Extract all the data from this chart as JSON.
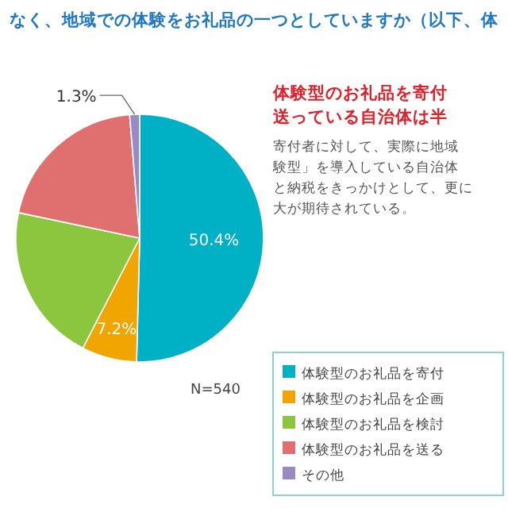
{
  "chart_data": {
    "type": "pie",
    "title": "なく、地域での体験をお礼品の一つとしていますか（以下、体",
    "categories": [
      "体験型のお礼品を寄付",
      "体験型のお礼品を企画",
      "体験型のお礼品を検討",
      "体験型のお礼品を送る",
      "その他"
    ],
    "values": [
      50.4,
      7.2,
      20.7,
      20.4,
      1.3
    ],
    "colors": [
      "#00b0c4",
      "#f0a500",
      "#8cc63f",
      "#e07070",
      "#9a8ac4"
    ],
    "value_labels": [
      "50.4%",
      "7.2%",
      null,
      null,
      "1.3%"
    ],
    "legend": "bottom right",
    "annotations": [
      "体験型のお礼品を寄付",
      "送っている自治体は半",
      "寄付者に対して、実際に地域",
      "験型」を導入している自治体",
      "と納税をきっかけとして、更に",
      "大が期待されている。",
      "N=540"
    ]
  }
}
